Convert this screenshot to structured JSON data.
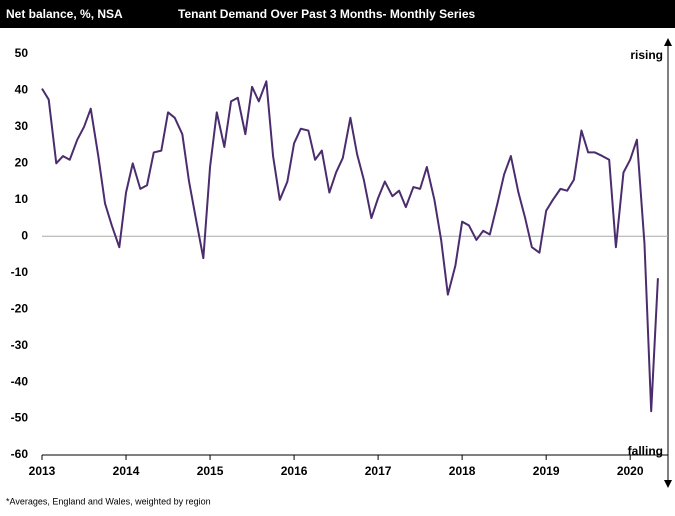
{
  "chart_data": {
    "type": "line",
    "header": "Net balance, %, NSA",
    "title": "Tenant Demand Over Past 3 Months- Monthly Series",
    "footnote": "*Averages,  England and Wales, weighted by region",
    "annotations": [
      "rising",
      "falling"
    ],
    "x": [
      2013.0,
      2013.08,
      2013.17,
      2013.25,
      2013.33,
      2013.42,
      2013.5,
      2013.58,
      2013.67,
      2013.75,
      2013.83,
      2013.92,
      2014.0,
      2014.08,
      2014.17,
      2014.25,
      2014.33,
      2014.42,
      2014.5,
      2014.58,
      2014.67,
      2014.75,
      2014.83,
      2014.92,
      2015.0,
      2015.08,
      2015.17,
      2015.25,
      2015.33,
      2015.42,
      2015.5,
      2015.58,
      2015.67,
      2015.75,
      2015.83,
      2015.92,
      2016.0,
      2016.08,
      2016.17,
      2016.25,
      2016.33,
      2016.42,
      2016.5,
      2016.58,
      2016.67,
      2016.75,
      2016.83,
      2016.92,
      2017.0,
      2017.08,
      2017.17,
      2017.25,
      2017.33,
      2017.42,
      2017.5,
      2017.58,
      2017.67,
      2017.75,
      2017.83,
      2017.92,
      2018.0,
      2018.08,
      2018.17,
      2018.25,
      2018.33,
      2018.42,
      2018.5,
      2018.58,
      2018.67,
      2018.75,
      2018.83,
      2018.92,
      2019.0,
      2019.08,
      2019.17,
      2019.25,
      2019.33,
      2019.42,
      2019.5,
      2019.58,
      2019.67,
      2019.75,
      2019.83,
      2019.92,
      2020.0,
      2020.08,
      2020.17,
      2020.25,
      2020.33
    ],
    "series": [
      {
        "name": "Tenant demand",
        "color": "#4b2d6e",
        "values": [
          40.5,
          37.5,
          20,
          22,
          21,
          26.5,
          30,
          35,
          22,
          9,
          3,
          -3,
          12,
          20,
          13,
          14,
          23,
          23.5,
          34,
          32.5,
          28,
          15,
          5,
          -6,
          19,
          34,
          24.5,
          37,
          38,
          28,
          41,
          37,
          42.5,
          22,
          10,
          15,
          25.5,
          29.5,
          29,
          21,
          23.5,
          12,
          17.5,
          21.5,
          32.5,
          22.5,
          15.5,
          5,
          10.5,
          15,
          11,
          12.5,
          8,
          13.5,
          13,
          19,
          10,
          -1,
          -16,
          -8,
          4,
          3,
          -1,
          1.5,
          0.5,
          9,
          17,
          22,
          12,
          5,
          -3,
          -4.5,
          7,
          10,
          13,
          12.5,
          15.5,
          29,
          23,
          23,
          22,
          21,
          -3,
          17.5,
          21,
          26.5,
          -2,
          -48,
          -11.5
        ]
      }
    ],
    "xlim": [
      2013,
      2020.45
    ],
    "xticks": [
      2013,
      2014,
      2015,
      2016,
      2017,
      2018,
      2019,
      2020
    ],
    "ylim": [
      -60,
      50
    ],
    "yticks": [
      50,
      40,
      30,
      20,
      10,
      0,
      -10,
      -20,
      -30,
      -40,
      -50,
      -60
    ],
    "zero_line": true
  }
}
